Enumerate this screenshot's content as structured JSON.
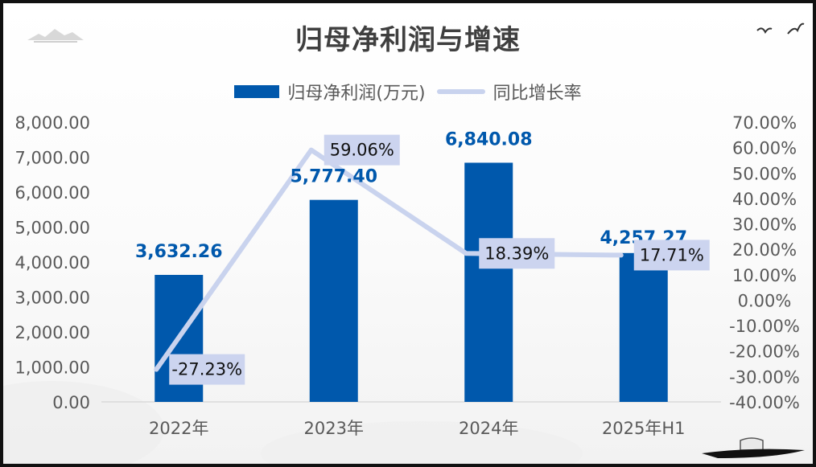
{
  "chart_data": {
    "type": "bar",
    "title": "归母净利润与增速",
    "categories": [
      "2022年",
      "2023年",
      "2024年",
      "2025年H1"
    ],
    "series": [
      {
        "name": "归母净利润(万元)",
        "type": "bar",
        "axis": "left",
        "color": "#0058ac",
        "values": [
          3632.26,
          5777.4,
          6840.08,
          4257.27
        ],
        "labels": [
          "3,632.26",
          "5,777.40",
          "6,840.08",
          "4,257.27"
        ]
      },
      {
        "name": "同比增长率",
        "type": "line",
        "axis": "right",
        "color": "#c9d3ee",
        "values": [
          -27.23,
          59.06,
          18.39,
          17.71
        ],
        "labels": [
          "-27.23%",
          "59.06%",
          "18.39%",
          "17.71%"
        ]
      }
    ],
    "y_left": {
      "min": 0,
      "max": 8000,
      "ticks": [
        "0.00",
        "1,000.00",
        "2,000.00",
        "3,000.00",
        "4,000.00",
        "5,000.00",
        "6,000.00",
        "7,000.00",
        "8,000.00"
      ]
    },
    "y_right": {
      "min": -40,
      "max": 70,
      "ticks": [
        "-40.00%",
        "-30.00%",
        "-20.00%",
        "-10.00%",
        "0.00%",
        "10.00%",
        "20.00%",
        "30.00%",
        "40.00%",
        "50.00%",
        "60.00%",
        "70.00%"
      ]
    },
    "grid": false,
    "legend_position": "top"
  }
}
